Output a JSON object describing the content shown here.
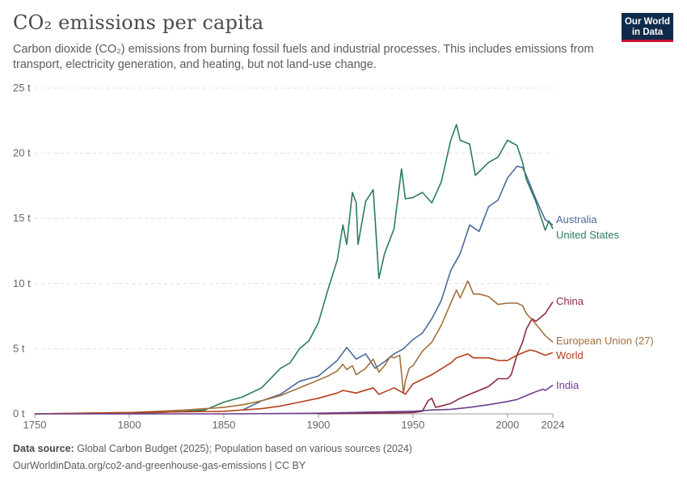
{
  "header": {
    "title": "CO₂ emissions per capita",
    "subtitle": "Carbon dioxide (CO₂) emissions from burning fossil fuels and industrial processes. This includes emissions from transport, electricity generation, and heating, but not land-use change.",
    "logo_line1": "Our World",
    "logo_line2": "in Data"
  },
  "footer": {
    "source_label": "Data source:",
    "source_text": "Global Carbon Budget (2025); Population based on various sources (2024)",
    "url_text": "OurWorldinData.org/co2-and-greenhouse-gas-emissions | CC BY"
  },
  "colors": {
    "Australia": "#4c6a9c",
    "United States": "#2a7d5c",
    "China": "#8c2a3e",
    "European Union (27)": "#a2703c",
    "World": "#b5401c",
    "India": "#6d3e91",
    "grid": "#dddddd",
    "axis": "#999999"
  },
  "chart_data": {
    "type": "line",
    "x_ticks": [
      "1750",
      "1800",
      "1850",
      "1900",
      "1950",
      "2000",
      "2024"
    ],
    "y_ticks": [
      "0 t",
      "5 t",
      "10 t",
      "15 t",
      "20 t",
      "25 t"
    ],
    "xlim": [
      1750,
      2024
    ],
    "ylim": [
      0,
      25
    ],
    "grid": "horizontal dashed",
    "legend": "labels at line ends, right",
    "series": [
      {
        "name": "Australia",
        "x": [
          1860,
          1870,
          1880,
          1890,
          1900,
          1905,
          1910,
          1915,
          1920,
          1925,
          1930,
          1935,
          1940,
          1945,
          1950,
          1955,
          1960,
          1965,
          1970,
          1975,
          1980,
          1985,
          1990,
          1995,
          2000,
          2005,
          2008,
          2010,
          2015,
          2020,
          2024
        ],
        "y": [
          0.3,
          1.0,
          1.5,
          2.5,
          2.9,
          3.5,
          4.1,
          5.1,
          4.2,
          4.6,
          3.5,
          4.0,
          4.6,
          5.0,
          5.7,
          6.2,
          7.3,
          8.7,
          11.0,
          12.3,
          14.5,
          14.0,
          15.9,
          16.4,
          18.1,
          19.0,
          18.9,
          18.3,
          16.5,
          14.9,
          14.5
        ]
      },
      {
        "name": "United States",
        "x": [
          1800,
          1830,
          1840,
          1850,
          1860,
          1870,
          1880,
          1885,
          1890,
          1895,
          1900,
          1905,
          1910,
          1913,
          1915,
          1918,
          1920,
          1921,
          1925,
          1929,
          1932,
          1935,
          1940,
          1944,
          1946,
          1950,
          1955,
          1960,
          1965,
          1970,
          1973,
          1975,
          1980,
          1983,
          1990,
          1995,
          2000,
          2005,
          2008,
          2010,
          2015,
          2020,
          2022,
          2024
        ],
        "y": [
          0.0,
          0.2,
          0.3,
          0.9,
          1.3,
          2.0,
          3.5,
          3.9,
          5.0,
          5.6,
          7.0,
          9.5,
          11.8,
          14.5,
          13.0,
          17.0,
          16.2,
          13.0,
          16.3,
          17.2,
          10.4,
          12.3,
          14.2,
          18.8,
          16.5,
          16.6,
          17.0,
          16.2,
          17.8,
          21.0,
          22.2,
          21.0,
          20.7,
          18.3,
          19.3,
          19.7,
          21.0,
          20.6,
          19.3,
          18.0,
          16.3,
          14.1,
          14.8,
          14.2
        ]
      },
      {
        "name": "China",
        "x": [
          1900,
          1950,
          1955,
          1958,
          1960,
          1962,
          1965,
          1970,
          1975,
          1980,
          1985,
          1990,
          1995,
          2000,
          2002,
          2005,
          2008,
          2010,
          2013,
          2015,
          2020,
          2024
        ],
        "y": [
          0.0,
          0.1,
          0.2,
          1.0,
          1.2,
          0.5,
          0.6,
          0.8,
          1.2,
          1.5,
          1.8,
          2.1,
          2.7,
          2.7,
          3.0,
          4.5,
          5.5,
          6.5,
          7.3,
          7.1,
          7.7,
          8.6
        ]
      },
      {
        "name": "European Union (27)",
        "x": [
          1750,
          1800,
          1830,
          1850,
          1860,
          1870,
          1880,
          1890,
          1900,
          1905,
          1910,
          1913,
          1915,
          1918,
          1920,
          1925,
          1929,
          1932,
          1935,
          1938,
          1940,
          1943,
          1945,
          1946,
          1948,
          1950,
          1955,
          1960,
          1965,
          1970,
          1973,
          1975,
          1979,
          1980,
          1982,
          1985,
          1990,
          1995,
          2000,
          2005,
          2008,
          2010,
          2015,
          2020,
          2024
        ],
        "y": [
          0.0,
          0.1,
          0.3,
          0.5,
          0.7,
          1.0,
          1.4,
          2.0,
          2.6,
          2.9,
          3.3,
          3.8,
          3.4,
          3.7,
          3.0,
          3.5,
          4.2,
          3.2,
          3.7,
          4.4,
          4.3,
          4.5,
          1.6,
          2.5,
          3.5,
          3.7,
          4.8,
          5.5,
          6.8,
          8.5,
          9.5,
          8.9,
          10.2,
          9.9,
          9.2,
          9.2,
          9.0,
          8.4,
          8.5,
          8.5,
          8.3,
          7.7,
          6.9,
          6.0,
          5.5
        ]
      },
      {
        "name": "World",
        "x": [
          1750,
          1800,
          1850,
          1870,
          1880,
          1890,
          1900,
          1910,
          1913,
          1920,
          1929,
          1932,
          1940,
          1945,
          1946,
          1950,
          1960,
          1970,
          1973,
          1979,
          1982,
          1990,
          1995,
          2000,
          2005,
          2010,
          2012,
          2015,
          2020,
          2024
        ],
        "y": [
          0.0,
          0.1,
          0.2,
          0.4,
          0.6,
          0.9,
          1.2,
          1.6,
          1.8,
          1.6,
          2.0,
          1.5,
          2.0,
          1.6,
          1.5,
          2.3,
          3.0,
          3.9,
          4.3,
          4.6,
          4.3,
          4.3,
          4.1,
          4.1,
          4.5,
          4.8,
          4.9,
          4.8,
          4.5,
          4.7
        ]
      },
      {
        "name": "India",
        "x": [
          1750,
          1850,
          1900,
          1950,
          1960,
          1970,
          1980,
          1990,
          2000,
          2005,
          2010,
          2015,
          2019,
          2020,
          2024
        ],
        "y": [
          0.0,
          0.0,
          0.05,
          0.2,
          0.3,
          0.35,
          0.5,
          0.7,
          0.95,
          1.1,
          1.4,
          1.7,
          1.9,
          1.8,
          2.2
        ]
      }
    ]
  }
}
